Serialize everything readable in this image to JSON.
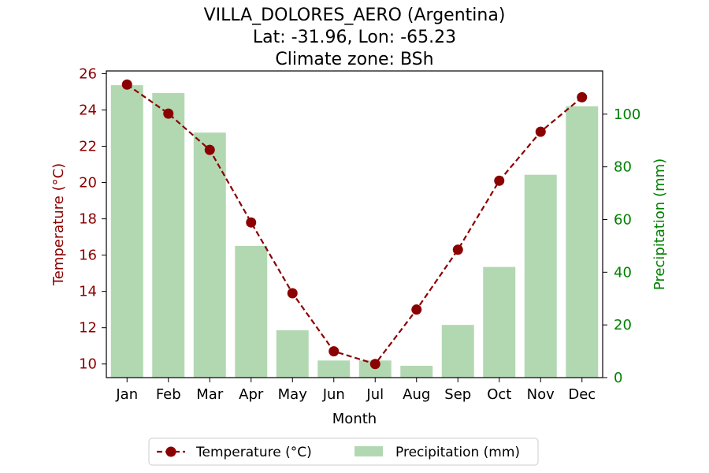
{
  "chart_data": {
    "type": "bar+line",
    "title_lines": [
      "VILLA_DOLORES_AERO (Argentina)",
      "Lat: -31.96, Lon: -65.23",
      "Climate zone: BSh"
    ],
    "xlabel": "Month",
    "ylabel_left": "Temperature (°C)",
    "ylabel_right": "Precipitation (mm)",
    "categories": [
      "Jan",
      "Feb",
      "Mar",
      "Apr",
      "May",
      "Jun",
      "Jul",
      "Aug",
      "Sep",
      "Oct",
      "Nov",
      "Dec"
    ],
    "series": [
      {
        "name": "Temperature (°C)",
        "kind": "line",
        "axis": "left",
        "color": "#8b0000",
        "values": [
          25.4,
          23.8,
          21.8,
          17.8,
          13.9,
          10.7,
          10.0,
          13.0,
          16.3,
          20.1,
          22.8,
          24.7
        ]
      },
      {
        "name": "Precipitation (mm)",
        "kind": "bar",
        "axis": "right",
        "color": "#b2d8b2",
        "values": [
          111,
          108,
          93,
          50,
          18,
          6.5,
          6.5,
          4.5,
          20,
          42,
          77,
          103
        ]
      }
    ],
    "ylim_left": [
      9.25,
      26.15
    ],
    "yticks_left": [
      10,
      12,
      14,
      16,
      18,
      20,
      22,
      24,
      26
    ],
    "ylim_right": [
      0,
      116.4
    ],
    "yticks_right": [
      0,
      20,
      40,
      60,
      80,
      100
    ],
    "left_axis_color": "#8b0000",
    "right_axis_color": "#008000",
    "grid": false,
    "legend_position": "bottom-center"
  }
}
